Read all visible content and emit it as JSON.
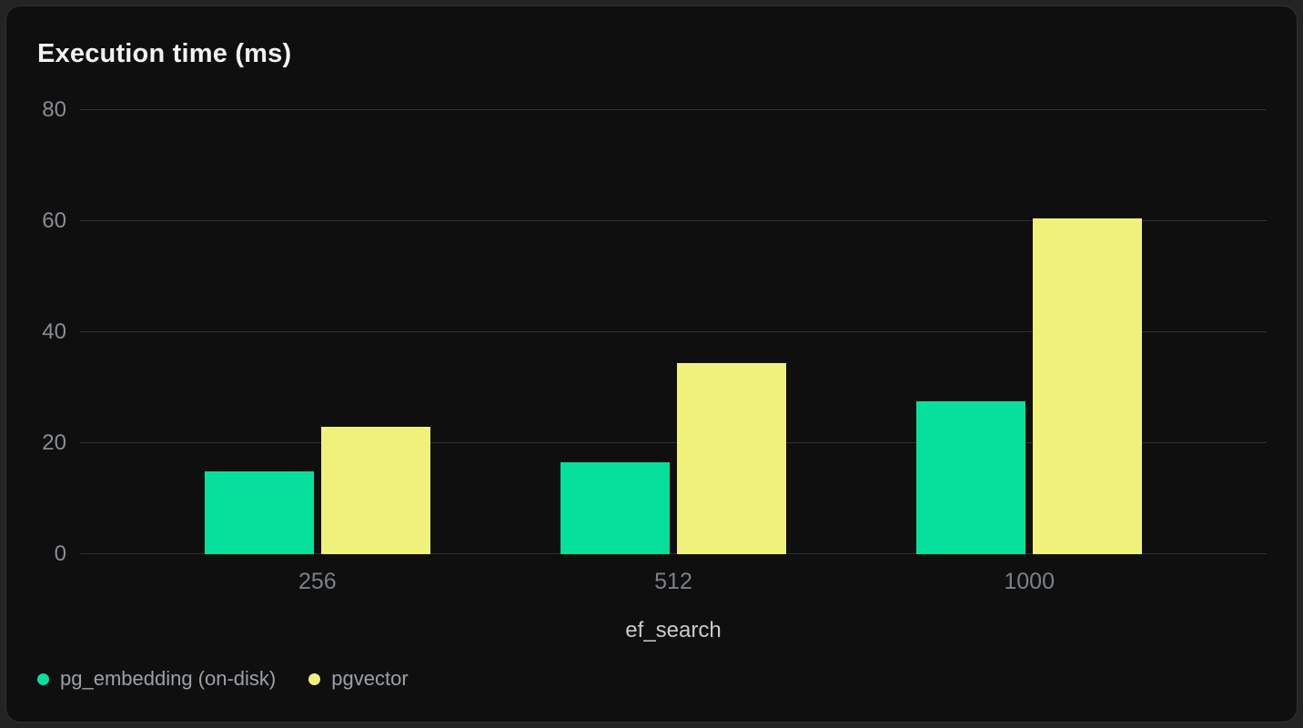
{
  "colors": {
    "page_background": "#242424",
    "card_background": "#0e0f0e",
    "card_border": "#323232",
    "grid_line": "#303030",
    "title_text": "#f2f3f2",
    "y_tick_text": "#898d94",
    "x_tick_text": "#7c8187",
    "axis_title_text": "#c9cbce",
    "legend_text": "#9ca0a7",
    "series_pg_embedding": "#07e09c",
    "series_pgvector": "#f0f17a"
  },
  "chart_data": {
    "type": "bar",
    "title": "Execution time (ms)",
    "xlabel": "ef_search",
    "ylabel": "",
    "ylim": [
      0,
      80
    ],
    "yticks": [
      0,
      20,
      40,
      60,
      80
    ],
    "grid": true,
    "legend_position": "bottom-left",
    "categories": [
      "256",
      "512",
      "1000"
    ],
    "series": [
      {
        "name": "pg_embedding (on-disk)",
        "color": "#07e09c",
        "values": [
          15,
          16.5,
          27.5
        ]
      },
      {
        "name": "pgvector",
        "color": "#f0f17a",
        "values": [
          23,
          34.5,
          60.5
        ]
      }
    ]
  }
}
